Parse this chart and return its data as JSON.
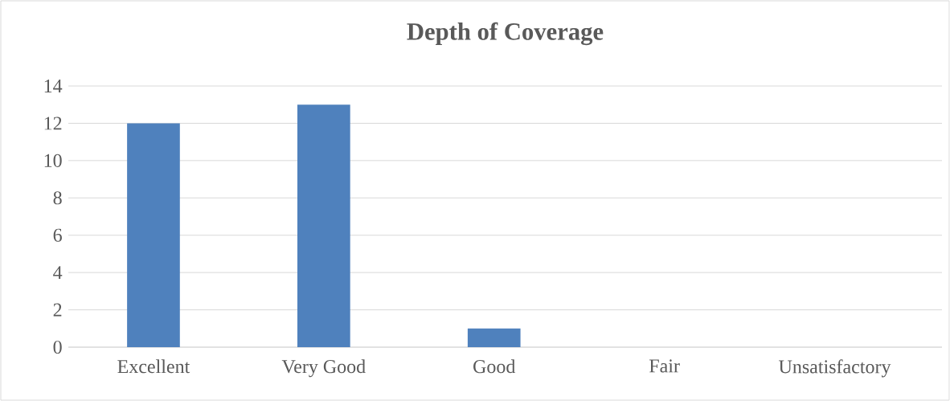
{
  "chart_data": {
    "type": "bar",
    "title": "Depth of Coverage",
    "categories": [
      "Excellent",
      "Very Good",
      "Good",
      "Fair",
      "Unsatisfactory"
    ],
    "values": [
      12,
      13,
      1,
      0,
      0
    ],
    "color": "#4f81bd",
    "ylim": [
      0,
      14
    ],
    "yticks": [
      0,
      2,
      4,
      6,
      8,
      10,
      12,
      14
    ],
    "grid": "y"
  }
}
